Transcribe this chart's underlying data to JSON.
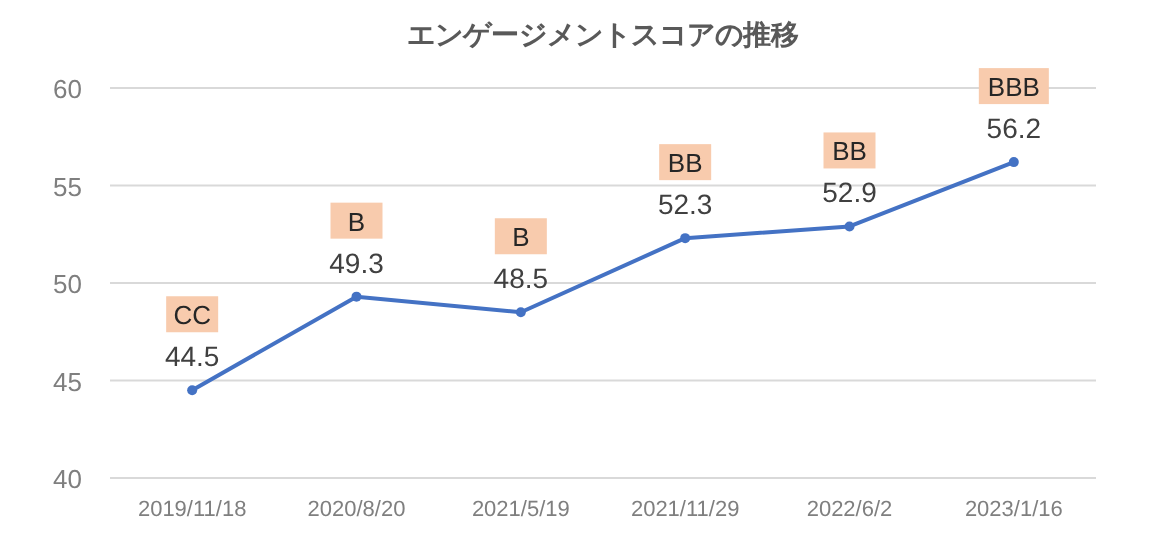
{
  "chart_data": {
    "type": "line",
    "title": "エンゲージメントスコアの推移",
    "categories": [
      "2019/11/18",
      "2020/8/20",
      "2021/5/19",
      "2021/11/29",
      "2022/6/2",
      "2023/1/16"
    ],
    "series": [
      {
        "color": "#4472c4",
        "values": [
          44.5,
          49.3,
          48.5,
          52.3,
          52.9,
          56.2
        ]
      }
    ],
    "ylim": [
      40,
      60
    ],
    "yticks": [
      40,
      45,
      50,
      55,
      60
    ],
    "grid": "y",
    "marker": "circle",
    "line_style": "solid",
    "data_labels": true,
    "annotations": [
      {
        "text": "CC",
        "x": "2019/11/18",
        "y": 44.5
      },
      {
        "text": "B",
        "x": "2020/8/20",
        "y": 49.3
      },
      {
        "text": "B",
        "x": "2021/5/19",
        "y": 48.5
      },
      {
        "text": "BB",
        "x": "2021/11/29",
        "y": 52.3
      },
      {
        "text": "BB",
        "x": "2022/6/2",
        "y": 52.9
      },
      {
        "text": "BBB",
        "x": "2023/1/16",
        "y": 56.2
      }
    ]
  }
}
